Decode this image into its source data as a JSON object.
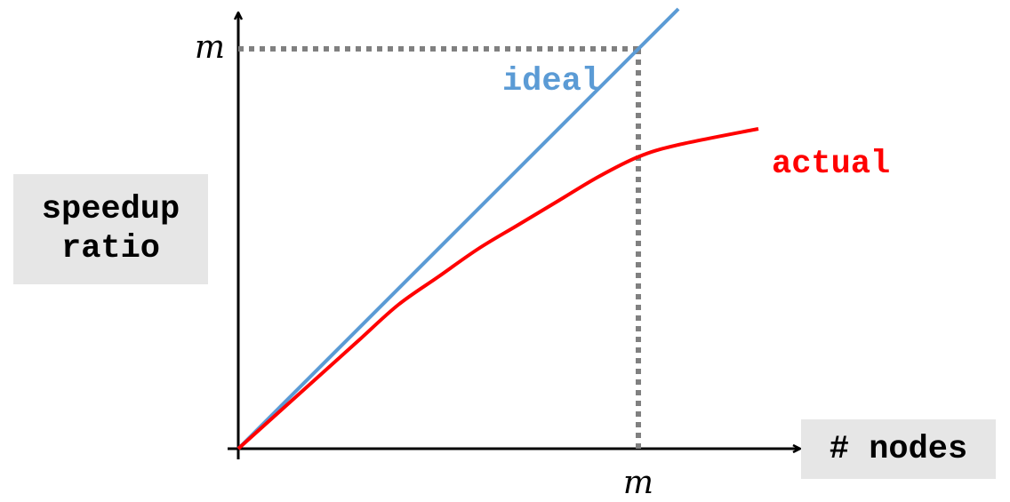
{
  "chart_data": {
    "type": "line",
    "xlabel": "# nodes",
    "ylabel": [
      "speedup",
      "ratio"
    ],
    "x_tick_label": "m",
    "y_tick_label": "m",
    "xlim": [
      0,
      1.4
    ],
    "ylim": [
      0,
      1.1
    ],
    "reference_point": {
      "x": 1,
      "y": 1
    },
    "series": [
      {
        "name": "ideal",
        "color": "#5b9bd5",
        "x": [
          0,
          1.1
        ],
        "y": [
          0,
          1.1
        ]
      },
      {
        "name": "actual",
        "color": "#ff0000",
        "x": [
          0,
          0.1,
          0.2,
          0.3,
          0.4,
          0.5,
          0.6,
          0.7,
          0.8,
          0.9,
          1.0,
          1.1,
          1.3
        ],
        "y": [
          0,
          0.09,
          0.18,
          0.27,
          0.36,
          0.43,
          0.5,
          0.56,
          0.62,
          0.68,
          0.73,
          0.76,
          0.8
        ]
      }
    ],
    "grid": false,
    "legend": "none"
  }
}
